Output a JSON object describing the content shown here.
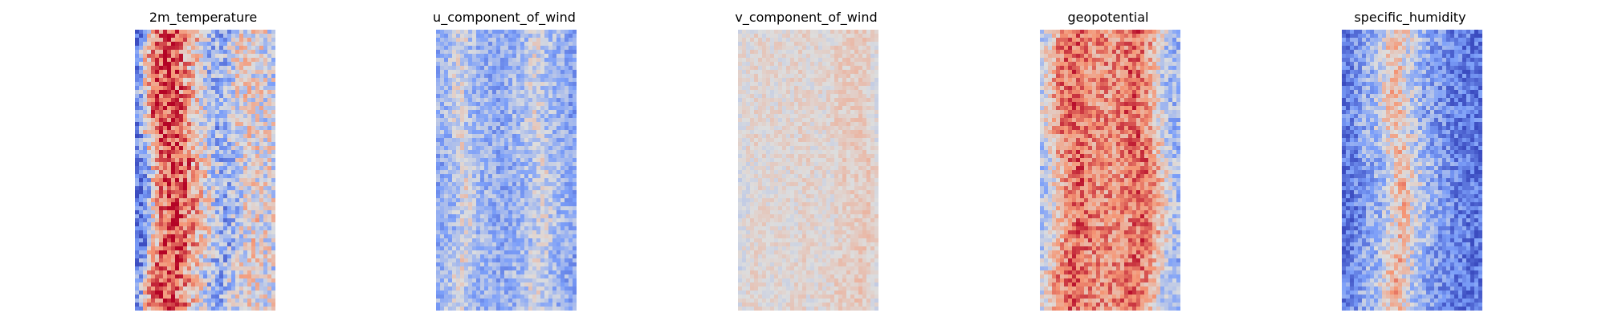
{
  "chart_data": [
    {
      "type": "heatmap",
      "title": "2m_temperature",
      "colormap": "coolwarm",
      "axes": "off",
      "grid": {
        "rows": 70,
        "cols": 35
      },
      "pattern": "warm vertical band in center with cooler edges; strongest red in center-left columns",
      "profile": [
        0.12,
        0.22,
        0.35,
        0.55,
        0.68,
        0.78,
        0.82,
        0.86,
        0.88,
        0.88,
        0.86,
        0.82,
        0.78,
        0.72,
        0.66,
        0.6,
        0.55,
        0.5,
        0.42,
        0.36,
        0.32,
        0.3,
        0.3,
        0.34,
        0.4,
        0.46,
        0.5,
        0.52,
        0.54,
        0.54,
        0.52,
        0.5,
        0.5,
        0.48,
        0.46
      ],
      "noise": 0.22,
      "seed": 11
    },
    {
      "type": "heatmap",
      "title": "u_component_of_wind",
      "colormap": "coolwarm",
      "axes": "off",
      "grid": {
        "rows": 70,
        "cols": 35
      },
      "pattern": "mostly light blue field with scattered red streaks along two meandering lines",
      "profile": [
        0.3,
        0.32,
        0.34,
        0.36,
        0.4,
        0.46,
        0.5,
        0.46,
        0.4,
        0.36,
        0.34,
        0.33,
        0.33,
        0.32,
        0.3,
        0.3,
        0.3,
        0.31,
        0.32,
        0.33,
        0.34,
        0.36,
        0.38,
        0.42,
        0.46,
        0.48,
        0.46,
        0.42,
        0.38,
        0.36,
        0.34,
        0.33,
        0.32,
        0.3,
        0.28
      ],
      "noise": 0.14,
      "seed": 23
    },
    {
      "type": "heatmap",
      "title": "v_component_of_wind",
      "colormap": "coolwarm",
      "axes": "off",
      "grid": {
        "rows": 70,
        "cols": 35
      },
      "pattern": "near-neutral field with faint warm patches and a few red spots near the right edge",
      "profile": [
        0.48,
        0.5,
        0.52,
        0.52,
        0.53,
        0.53,
        0.52,
        0.52,
        0.52,
        0.52,
        0.52,
        0.52,
        0.52,
        0.52,
        0.53,
        0.54,
        0.54,
        0.53,
        0.52,
        0.52,
        0.52,
        0.52,
        0.52,
        0.53,
        0.54,
        0.56,
        0.56,
        0.56,
        0.56,
        0.57,
        0.58,
        0.58,
        0.56,
        0.54,
        0.5
      ],
      "noise": 0.07,
      "seed": 37
    },
    {
      "type": "heatmap",
      "title": "geopotential",
      "colormap": "coolwarm",
      "axes": "off",
      "grid": {
        "rows": 70,
        "cols": 35
      },
      "pattern": "warm central band with cooler blue speckles on both edges",
      "profile": [
        0.4,
        0.45,
        0.52,
        0.6,
        0.68,
        0.74,
        0.78,
        0.8,
        0.82,
        0.82,
        0.8,
        0.78,
        0.76,
        0.74,
        0.74,
        0.74,
        0.74,
        0.74,
        0.74,
        0.74,
        0.76,
        0.78,
        0.8,
        0.82,
        0.82,
        0.8,
        0.76,
        0.72,
        0.66,
        0.6,
        0.52,
        0.44,
        0.38,
        0.36,
        0.34
      ],
      "noise": 0.16,
      "seed": 51
    },
    {
      "type": "heatmap",
      "title": "specific_humidity",
      "colormap": "coolwarm",
      "axes": "off",
      "grid": {
        "rows": 70,
        "cols": 35
      },
      "pattern": "blue field with a narrow warm vertical streak near the center",
      "profile": [
        0.12,
        0.15,
        0.18,
        0.2,
        0.24,
        0.28,
        0.3,
        0.32,
        0.34,
        0.38,
        0.44,
        0.5,
        0.56,
        0.62,
        0.66,
        0.6,
        0.52,
        0.46,
        0.42,
        0.38,
        0.34,
        0.3,
        0.28,
        0.26,
        0.24,
        0.22,
        0.2,
        0.18,
        0.17,
        0.16,
        0.15,
        0.14,
        0.13,
        0.12,
        0.12
      ],
      "noise": 0.16,
      "seed": 67
    }
  ]
}
